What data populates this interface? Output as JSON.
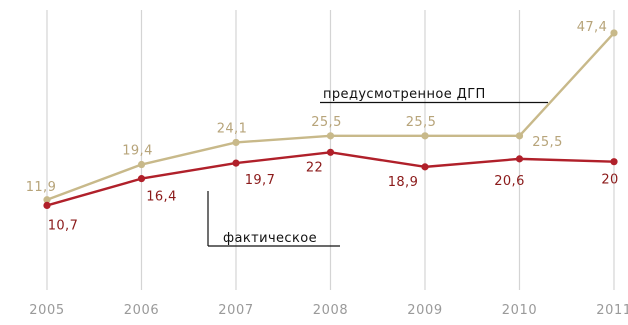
{
  "chart_data": {
    "type": "line",
    "categories": [
      "2005",
      "2006",
      "2007",
      "2008",
      "2009",
      "2010",
      "2011"
    ],
    "series": [
      {
        "name": "предусмотренное ДГП",
        "values": [
          11.9,
          19.4,
          24.1,
          25.5,
          25.5,
          25.5,
          47.4
        ],
        "labels": [
          "11,9",
          "19,4",
          "24,1",
          "25,5",
          "25,5",
          "25,5",
          "47,4"
        ],
        "color": "#c8b98a"
      },
      {
        "name": "фактическое",
        "values": [
          10.7,
          16.4,
          19.7,
          22,
          18.9,
          20.6,
          20
        ],
        "labels": [
          "10,7",
          "16,4",
          "19,7",
          "22",
          "18,9",
          "20,6",
          "20"
        ],
        "color": "#b0202a"
      }
    ],
    "grid": "vertical",
    "legend": "inline annotations",
    "colors": {
      "gridline": "#d4d4d4",
      "tick_text": "#9a9a9a",
      "plan_label": "#b7a47a",
      "fact_label": "#8b1a1a"
    }
  }
}
